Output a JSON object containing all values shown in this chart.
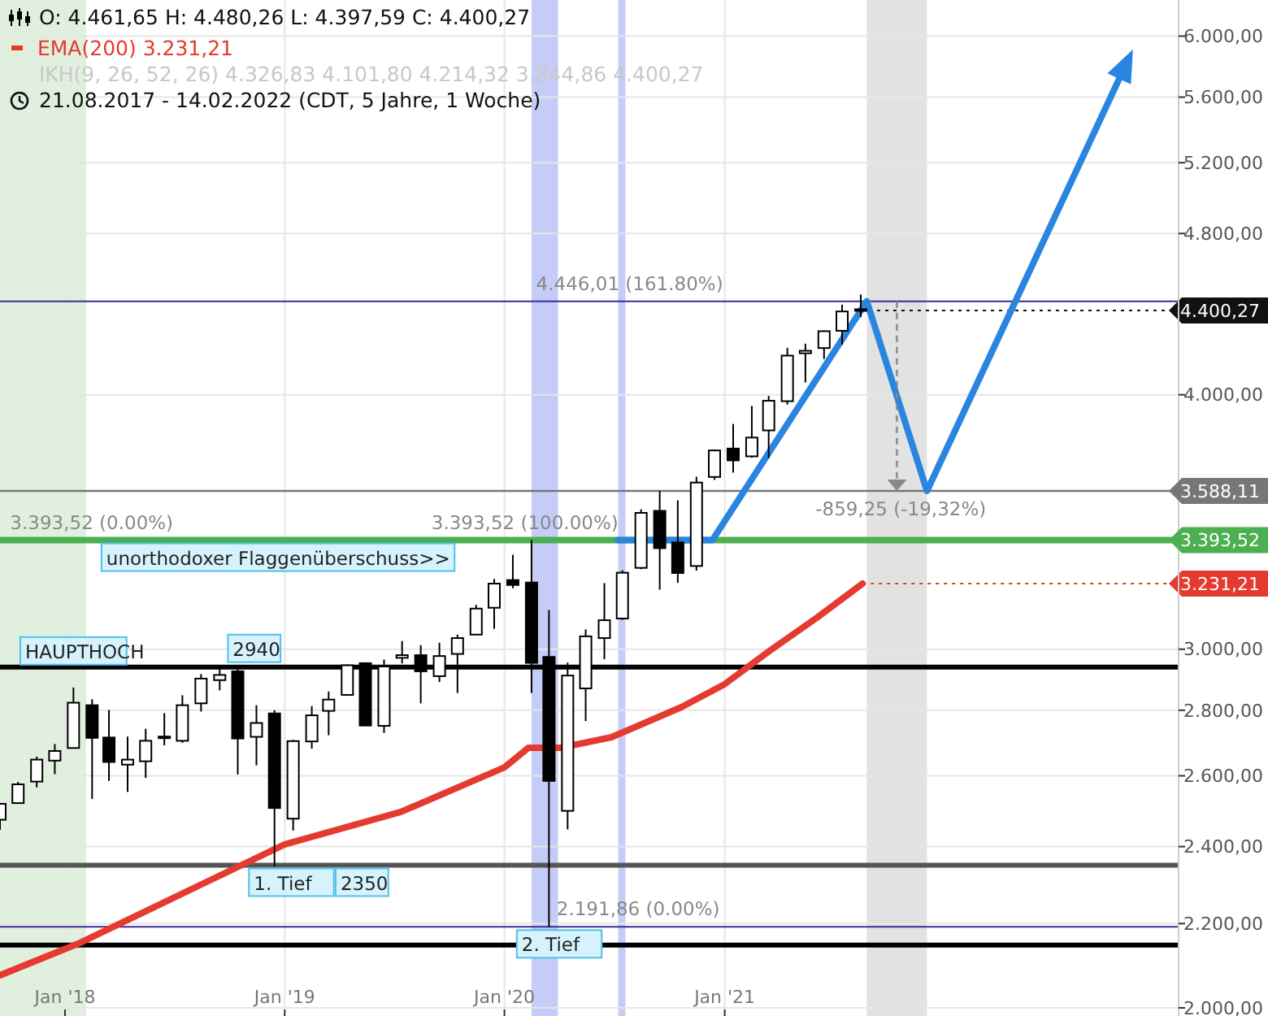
{
  "chart_data": {
    "type": "candlestick",
    "title": "O: 4.461,65 H: 4.480,26 L: 4.397,59 C: 4.400,27",
    "annotations": [
      "IKH(9, 26, 52, 26) 4.326,83 4.101,80 4.214,32 3.844,86 4.400,27",
      "21.08.2017 - 14.02.2022 (CDT, 5 Jahre, 1 Woche)",
      {
        "text": "HAUPTHOCH",
        "x": "2018-01-15",
        "y": 2873
      },
      {
        "text": "2940",
        "x": "2018-10-04",
        "y": 2940
      },
      {
        "text": "1. Tief",
        "x": "2018-11-08",
        "y": 2350
      },
      {
        "text": "2350",
        "x": "2019-04-01",
        "y": 2350
      },
      {
        "text": "2. Tief",
        "x": "2020-01-27",
        "y": 2191.86
      },
      {
        "text": "unorthodoxer Flaggenüberschuss>>",
        "x": "2018-03-08",
        "y": 3393.52
      },
      {
        "text": "3.393,52 (0.00%)",
        "x": "2017-09-29",
        "y": 3393.52
      },
      {
        "text": "3.393,52 (100.00%)",
        "x": "2019-08-30",
        "y": 3393.52
      },
      {
        "text": "4.446,01 (161.80%)",
        "x": "2020-02-20",
        "y": 4446.01
      },
      {
        "text": "2.191,86 (0.00%)",
        "x": "2020-03-25",
        "y": 2191.86
      },
      {
        "text": "-859,25 (-19,32%)",
        "x": "2021-05-29",
        "y": 3588.11
      },
      {
        "text": "4.400,27",
        "x": "2021-08-15",
        "y": 4400.27
      },
      {
        "text": "3.231,21",
        "x": "2021-08-18",
        "y": 3231.21
      }
    ],
    "xlim": [
      "2017-09-15",
      "2023-01-25"
    ],
    "xticks": [
      {
        "value": "2018-01-01",
        "label": "Jan '18"
      },
      {
        "value": "2019-01-01",
        "label": "Jan '19"
      },
      {
        "value": "2020-01-01",
        "label": "Jan '20"
      },
      {
        "value": "2021-01-01",
        "label": "Jan '21"
      }
    ],
    "ylim": [
      2000,
      6250
    ],
    "log": true,
    "yticks": [
      {
        "value": 2000,
        "label": "2.000,00"
      },
      {
        "value": 2200,
        "label": "2.200,00"
      },
      {
        "value": 2400,
        "label": "2.400,00"
      },
      {
        "value": 2600,
        "label": "2.600,00"
      },
      {
        "value": 2800,
        "label": "2.800,00"
      },
      {
        "value": 3000,
        "label": "3.000,00"
      },
      {
        "value": 4000,
        "label": "4.000,00"
      },
      {
        "value": 4800,
        "label": "4.800,00"
      },
      {
        "value": 5200,
        "label": "5.200,00"
      },
      {
        "value": 5600,
        "label": "5.600,00"
      },
      {
        "value": 6000,
        "label": "6.000,00"
      }
    ],
    "grid": true,
    "legend": "top left",
    "ref_lines": [
      {
        "axis": "y",
        "value": 2940,
        "color": "#000000"
      },
      {
        "axis": "y",
        "value": 2350,
        "color": "#555555"
      },
      {
        "axis": "y",
        "value": 2147,
        "color": "#000000"
      },
      {
        "axis": "y",
        "value": 3393.52,
        "label": "3.393,52",
        "color": "#4caf50"
      },
      {
        "axis": "y",
        "value": 3588.11,
        "label": "3.588,11",
        "color": "#777777"
      },
      {
        "axis": "y",
        "value": 2191.86,
        "color": "#3f2b96"
      },
      {
        "axis": "y",
        "value": 4446.01,
        "color": "#3f2b96"
      }
    ],
    "bands": [
      {
        "axis": "x",
        "from": "2017-09-15",
        "to": "2018-02-05",
        "color": "#dcecd9"
      },
      {
        "axis": "x",
        "from": "2020-02-15",
        "to": "2020-03-30",
        "color": "#bcc3f7"
      },
      {
        "axis": "x",
        "from": "2020-07-08",
        "to": "2020-07-20",
        "color": "#bcc3f7"
      },
      {
        "axis": "x",
        "from": "2021-08-25",
        "to": "2021-12-03",
        "color": "#dddddd"
      }
    ],
    "series": [
      {
        "x": [
          "2017-09-15",
          "2017-10-15",
          "2017-11-15",
          "2017-12-15",
          "2018-01-15",
          "2018-02-15",
          "2018-03-15",
          "2018-04-15",
          "2018-05-15",
          "2018-06-15",
          "2018-07-15",
          "2018-08-15",
          "2018-09-15",
          "2018-10-15",
          "2018-11-15",
          "2018-12-15",
          "2019-01-15",
          "2019-02-15",
          "2019-03-15",
          "2019-04-15",
          "2019-05-15",
          "2019-06-15",
          "2019-07-15",
          "2019-08-15",
          "2019-09-15",
          "2019-10-15",
          "2019-11-15",
          "2019-12-15",
          "2020-01-15",
          "2020-02-15",
          "2020-03-15",
          "2020-04-15",
          "2020-05-15",
          "2020-06-15",
          "2020-07-15",
          "2020-08-15",
          "2020-09-15",
          "2020-10-15",
          "2020-11-15",
          "2020-12-15",
          "2021-01-15",
          "2021-02-15",
          "2021-03-15",
          "2021-04-15",
          "2021-05-15",
          "2021-06-15",
          "2021-07-15",
          "2021-08-15"
        ],
        "ohlc": [
          [
            2474,
            2519,
            2446,
            2519
          ],
          [
            2521,
            2582,
            2520,
            2575
          ],
          [
            2583,
            2657,
            2566,
            2648
          ],
          [
            2645,
            2695,
            2605,
            2674
          ],
          [
            2683,
            2873,
            2683,
            2824
          ],
          [
            2816,
            2835,
            2533,
            2714
          ],
          [
            2715,
            2801,
            2585,
            2641
          ],
          [
            2633,
            2718,
            2553,
            2648
          ],
          [
            2643,
            2742,
            2594,
            2705
          ],
          [
            2718,
            2791,
            2691,
            2718
          ],
          [
            2705,
            2848,
            2699,
            2816
          ],
          [
            2822,
            2917,
            2796,
            2902
          ],
          [
            2897,
            2941,
            2864,
            2914
          ],
          [
            2926,
            2940,
            2604,
            2712
          ],
          [
            2717,
            2816,
            2631,
            2760
          ],
          [
            2790,
            2800,
            2347,
            2507
          ],
          [
            2477,
            2708,
            2444,
            2704
          ],
          [
            2703,
            2813,
            2681,
            2784
          ],
          [
            2798,
            2860,
            2722,
            2834
          ],
          [
            2849,
            2949,
            2848,
            2946
          ],
          [
            2953,
            2954,
            2751,
            2752
          ],
          [
            2751,
            2965,
            2729,
            2942
          ],
          [
            2971,
            3028,
            2952,
            2980
          ],
          [
            2980,
            3014,
            2822,
            2926
          ],
          [
            2910,
            3022,
            2891,
            2977
          ],
          [
            2984,
            3050,
            2855,
            3038
          ],
          [
            3050,
            3154,
            3050,
            3141
          ],
          [
            3144,
            3248,
            3070,
            3231
          ],
          [
            3244,
            3338,
            3214,
            3226
          ],
          [
            3235,
            3394,
            2855,
            2954
          ],
          [
            2974,
            3136,
            2192,
            2585
          ],
          [
            2499,
            2955,
            2447,
            2912
          ],
          [
            2870,
            3068,
            2766,
            3044
          ],
          [
            3038,
            3233,
            2966,
            3100
          ],
          [
            3106,
            3280,
            3101,
            3271
          ],
          [
            3289,
            3514,
            3284,
            3500
          ],
          [
            3508,
            3588,
            3209,
            3363
          ],
          [
            3385,
            3550,
            3234,
            3270
          ],
          [
            3296,
            3646,
            3279,
            3622
          ],
          [
            3645,
            3760,
            3633,
            3756
          ],
          [
            3764,
            3870,
            3663,
            3714
          ],
          [
            3731,
            3950,
            3725,
            3811
          ],
          [
            3842,
            3995,
            3723,
            3973
          ],
          [
            3971,
            4218,
            3956,
            4181
          ],
          [
            4192,
            4238,
            4056,
            4204
          ],
          [
            4217,
            4302,
            4165,
            4298
          ],
          [
            4300,
            4429,
            4233,
            4395
          ],
          [
            4406,
            4480,
            4367,
            4400
          ]
        ]
      },
      {
        "type": "line",
        "name": "EMA(200) 3.231,21",
        "color": "#e53a2f",
        "x": [
          "2017-09-15",
          "2018-01-22",
          "2018-06-10",
          "2019-01-01",
          "2019-07-13",
          "2020-01-01",
          "2020-02-10",
          "2020-04-04",
          "2020-06-27",
          "2020-10-21",
          "2021-01-01",
          "2021-03-16",
          "2021-06-04",
          "2021-08-18"
        ],
        "values": [
          2075,
          2150,
          2250,
          2406,
          2496,
          2625,
          2684,
          2684,
          2716,
          2810,
          2884,
          2994,
          3110,
          3231.21
        ]
      }
    ]
  }
}
